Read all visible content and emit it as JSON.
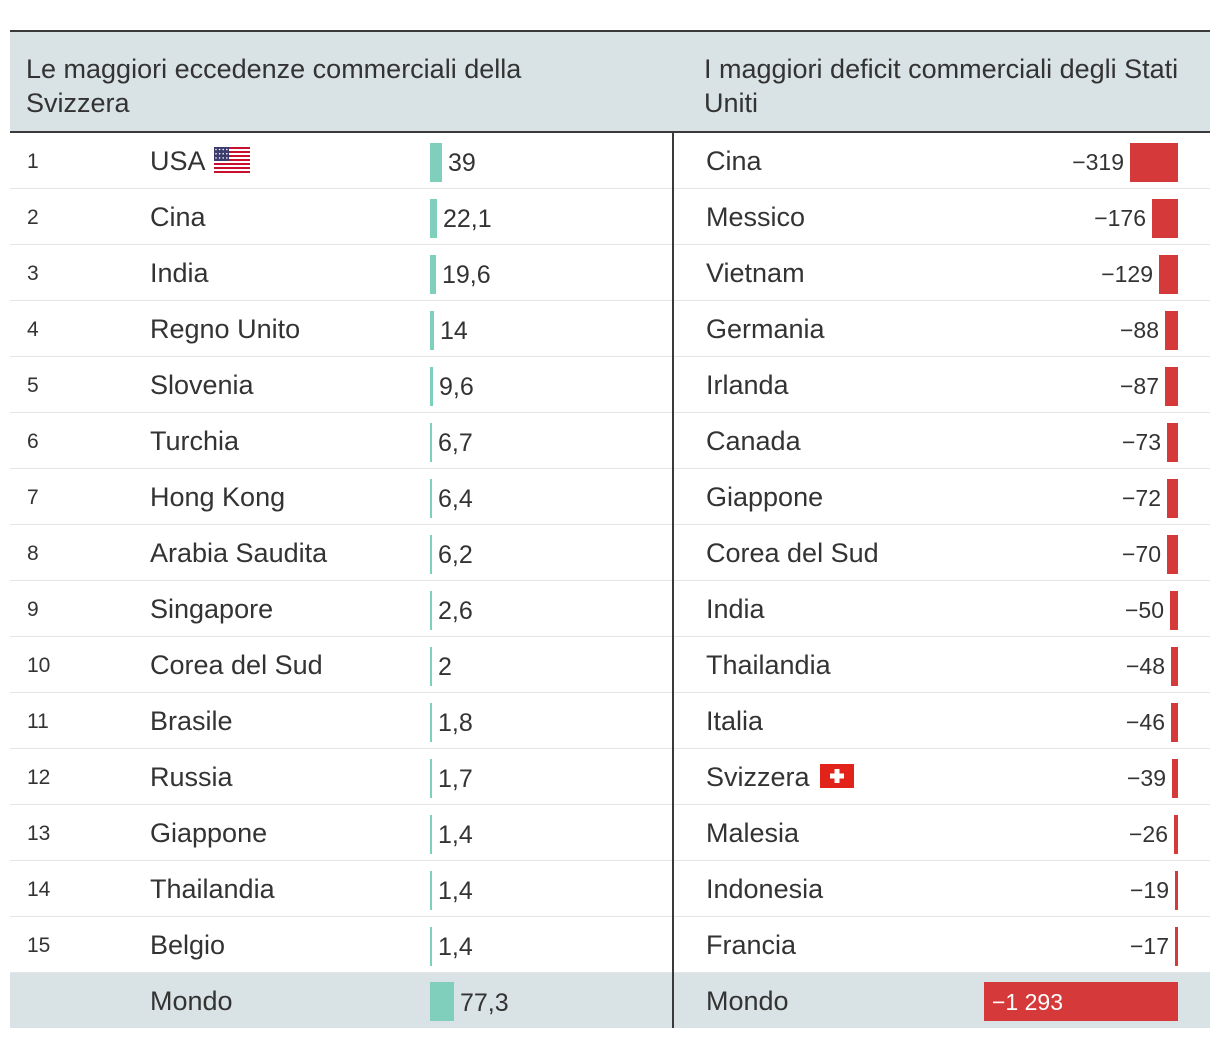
{
  "colors": {
    "surplus_bar": "#7fcfbc",
    "deficit_bar": "#d63939",
    "header_bg": "#d9e2e4",
    "text": "#333333"
  },
  "headers": {
    "left": "Le maggiori eccedenze commerciali della Svizzera",
    "right": "I maggiori deficit commerciali degli Stati Uniti"
  },
  "chart_data": [
    {
      "type": "bar",
      "title": "Le maggiori eccedenze commerciali della Svizzera",
      "categories": [
        "USA",
        "Cina",
        "India",
        "Regno Unito",
        "Slovenia",
        "Turchia",
        "Hong Kong",
        "Arabia Saudita",
        "Singapore",
        "Corea del Sud",
        "Brasile",
        "Russia",
        "Giappone",
        "Thailandia",
        "Belgio"
      ],
      "ranks": [
        "1",
        "2",
        "3",
        "4",
        "5",
        "6",
        "7",
        "8",
        "9",
        "10",
        "11",
        "12",
        "13",
        "14",
        "15"
      ],
      "values": [
        39,
        22.1,
        19.6,
        14,
        9.6,
        6.7,
        6.4,
        6.2,
        2.6,
        2,
        1.8,
        1.7,
        1.4,
        1.4,
        1.4
      ],
      "labels": [
        "39",
        "22,1",
        "19,6",
        "14",
        "9,6",
        "6,7",
        "6,4",
        "6,2",
        "2,6",
        "2",
        "1,8",
        "1,7",
        "1,4",
        "1,4",
        "1,4"
      ],
      "total": {
        "category": "Mondo",
        "value": 77.3,
        "label": "77,3"
      }
    },
    {
      "type": "bar",
      "title": "I maggiori deficit commerciali degli Stati Uniti",
      "categories": [
        "Cina",
        "Messico",
        "Vietnam",
        "Germania",
        "Irlanda",
        "Canada",
        "Giappone",
        "Corea del Sud",
        "India",
        "Thailandia",
        "Italia",
        "Svizzera",
        "Malesia",
        "Indonesia",
        "Francia"
      ],
      "values": [
        -319,
        -176,
        -129,
        -88,
        -87,
        -73,
        -72,
        -70,
        -50,
        -48,
        -46,
        -39,
        -26,
        -19,
        -17
      ],
      "labels": [
        "−319",
        "−176",
        "−129",
        "−88",
        "−87",
        "−73",
        "−72",
        "−70",
        "−50",
        "−48",
        "−46",
        "−39",
        "−26",
        "−19",
        "−17"
      ],
      "total": {
        "category": "Mondo",
        "value": -1293,
        "label": "−1 293"
      }
    }
  ],
  "flags": {
    "us": "us-flag-icon",
    "ch": "swiss-flag-icon"
  }
}
